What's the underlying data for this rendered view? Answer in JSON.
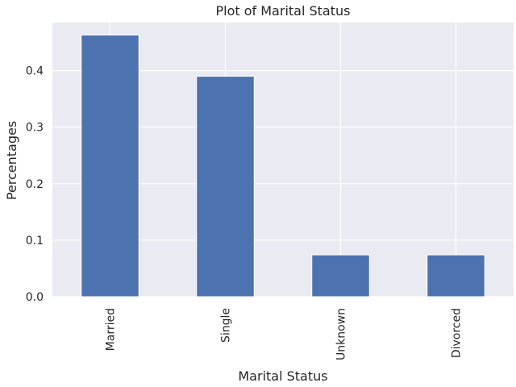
{
  "chart_data": {
    "type": "bar",
    "title": "Plot of Marital Status",
    "xlabel": "Marital Status",
    "ylabel": "Percentages",
    "categories": [
      "Married",
      "Single",
      "Unknown",
      "Divorced"
    ],
    "values": [
      0.463,
      0.39,
      0.074,
      0.074
    ],
    "ylim": [
      0,
      0.485
    ],
    "yticks": [
      "0.0",
      "0.1",
      "0.2",
      "0.3",
      "0.4"
    ],
    "grid": true,
    "legend": "none",
    "colors": {
      "bar": "#4c72b0",
      "plot_background": "#eaeaf2",
      "grid": "#ffffff",
      "text": "#262626"
    }
  }
}
